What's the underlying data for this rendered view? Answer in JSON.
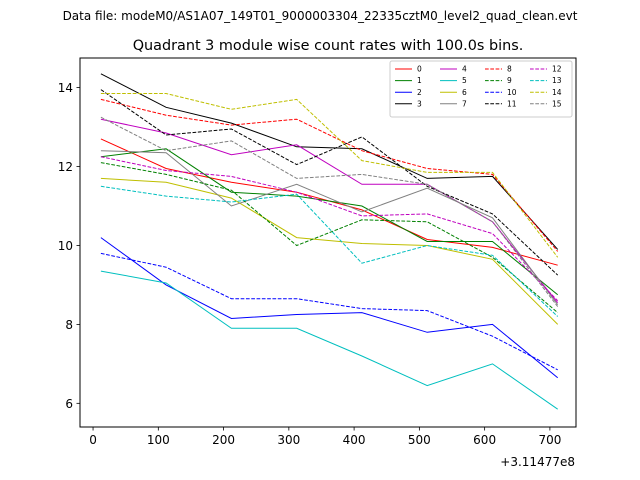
{
  "figure": {
    "suptitle": "Data file: modeM0/AS1A07_149T01_9000003304_22335cztM0_level2_quad_clean.evt"
  },
  "chart_data": {
    "type": "line",
    "title": "Quadrant 3 module wise count rates with 100.0s bins.",
    "xlabel": "",
    "ylabel": "",
    "x_offset_label": "+3.11477e8",
    "xlim": [
      -20,
      740
    ],
    "ylim": [
      5.4,
      14.75
    ],
    "xticks": [
      0,
      100,
      200,
      300,
      400,
      500,
      600,
      700
    ],
    "yticks": [
      6,
      8,
      10,
      12,
      14
    ],
    "legend_position": "top-right",
    "legend_columns": 4,
    "x": [
      12,
      112,
      212,
      312,
      412,
      512,
      612,
      712
    ],
    "series": [
      {
        "name": "0",
        "color": "#ff0000",
        "dash": "solid",
        "values": [
          12.7,
          11.95,
          11.6,
          11.35,
          10.9,
          10.15,
          9.95,
          9.5
        ]
      },
      {
        "name": "1",
        "color": "#008000",
        "dash": "solid",
        "values": [
          12.25,
          12.45,
          11.35,
          11.25,
          11.0,
          10.1,
          10.1,
          8.75
        ]
      },
      {
        "name": "2",
        "color": "#0000ff",
        "dash": "solid",
        "values": [
          10.2,
          9.0,
          8.15,
          8.25,
          8.3,
          7.8,
          8.0,
          6.65
        ]
      },
      {
        "name": "3",
        "color": "#000000",
        "dash": "solid",
        "values": [
          14.35,
          13.5,
          13.1,
          12.5,
          12.45,
          11.7,
          11.75,
          9.9
        ]
      },
      {
        "name": "4",
        "color": "#bf00bf",
        "dash": "solid",
        "values": [
          13.2,
          12.85,
          12.3,
          12.55,
          11.55,
          11.55,
          10.6,
          8.55
        ]
      },
      {
        "name": "5",
        "color": "#00bfbf",
        "dash": "solid",
        "values": [
          9.35,
          9.05,
          7.9,
          7.9,
          7.2,
          6.45,
          7.0,
          5.85
        ]
      },
      {
        "name": "6",
        "color": "#bfbf00",
        "dash": "solid",
        "values": [
          11.7,
          11.6,
          11.2,
          10.2,
          10.05,
          10.0,
          9.65,
          8.0
        ]
      },
      {
        "name": "7",
        "color": "#808080",
        "dash": "solid",
        "values": [
          12.4,
          12.35,
          11.0,
          11.55,
          10.85,
          11.45,
          10.7,
          8.5
        ]
      },
      {
        "name": "8",
        "color": "#ff0000",
        "dash": "dashed",
        "values": [
          13.7,
          13.3,
          13.05,
          13.2,
          12.4,
          11.95,
          11.8,
          9.85
        ]
      },
      {
        "name": "9",
        "color": "#008000",
        "dash": "dashed",
        "values": [
          12.1,
          11.8,
          11.4,
          10.0,
          10.65,
          10.6,
          9.7,
          8.3
        ]
      },
      {
        "name": "10",
        "color": "#0000ff",
        "dash": "dashed",
        "values": [
          9.8,
          9.45,
          8.65,
          8.65,
          8.4,
          8.35,
          7.7,
          6.85
        ]
      },
      {
        "name": "11",
        "color": "#000000",
        "dash": "dashed",
        "values": [
          13.95,
          12.8,
          12.95,
          12.05,
          12.75,
          11.5,
          10.8,
          9.25
        ]
      },
      {
        "name": "12",
        "color": "#bf00bf",
        "dash": "dashed",
        "values": [
          12.25,
          11.9,
          11.75,
          11.35,
          10.75,
          10.8,
          10.3,
          8.6
        ]
      },
      {
        "name": "13",
        "color": "#00bfbf",
        "dash": "dashed",
        "values": [
          11.5,
          11.25,
          11.1,
          11.3,
          9.55,
          10.0,
          9.75,
          8.2
        ]
      },
      {
        "name": "14",
        "color": "#bfbf00",
        "dash": "dashed",
        "values": [
          13.85,
          13.85,
          13.45,
          13.7,
          12.15,
          11.85,
          11.85,
          9.7
        ]
      },
      {
        "name": "15",
        "color": "#808080",
        "dash": "dashed",
        "values": [
          13.25,
          12.4,
          12.65,
          11.7,
          11.8,
          11.55,
          10.6,
          8.45
        ]
      }
    ]
  }
}
